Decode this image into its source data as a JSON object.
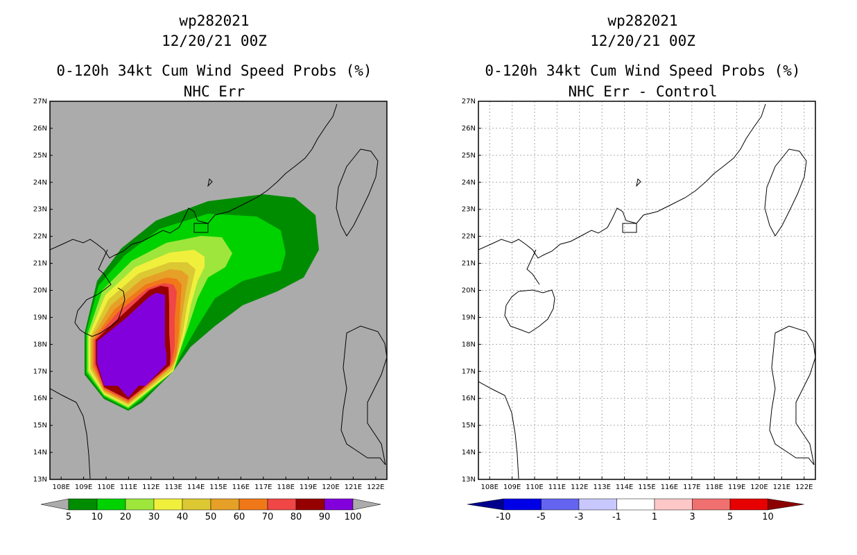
{
  "left_panel": {
    "title_storm": "wp282021",
    "title_time": "12/20/21 00Z",
    "title_product": "0-120h 34kt Cum Wind Speed Probs (%)",
    "title_model": "NHC Err",
    "lat_labels": [
      "27N",
      "26N",
      "25N",
      "24N",
      "23N",
      "22N",
      "21N",
      "20N",
      "19N",
      "18N",
      "17N",
      "16N",
      "15N",
      "14N",
      "13N"
    ],
    "lon_labels": [
      "108E",
      "109E",
      "110E",
      "111E",
      "112E",
      "113E",
      "114E",
      "115E",
      "116E",
      "117E",
      "118E",
      "119E",
      "120E",
      "121E",
      "122E"
    ],
    "colorbar": {
      "labels": [
        "5",
        "10",
        "20",
        "30",
        "40",
        "50",
        "60",
        "70",
        "80",
        "90",
        "100"
      ],
      "colors": [
        "#ababab",
        "#008c00",
        "#00d200",
        "#9ee63c",
        "#f0f03c",
        "#dcc832",
        "#e6a028",
        "#f07819",
        "#f04646",
        "#960000",
        "#8200dc",
        "#ababab"
      ]
    }
  },
  "right_panel": {
    "title_storm": "wp282021",
    "title_time": "12/20/21 00Z",
    "title_product": "0-120h 34kt Cum Wind Speed Probs (%)",
    "title_model": "NHC Err - Control",
    "lat_labels": [
      "27N",
      "26N",
      "25N",
      "24N",
      "23N",
      "22N",
      "21N",
      "20N",
      "19N",
      "18N",
      "17N",
      "16N",
      "15N",
      "14N",
      "13N"
    ],
    "lon_labels": [
      "108E",
      "109E",
      "110E",
      "111E",
      "112E",
      "113E",
      "114E",
      "115E",
      "116E",
      "117E",
      "118E",
      "119E",
      "120E",
      "121E",
      "122E"
    ],
    "colorbar": {
      "labels": [
        "-10",
        "-5",
        "-3",
        "-1",
        "1",
        "3",
        "5",
        "10"
      ],
      "colors": [
        "#00008c",
        "#0000e6",
        "#6464f0",
        "#c8c8ff",
        "#ffffff",
        "#ffc8c8",
        "#f07070",
        "#e60000",
        "#8c0000"
      ]
    }
  },
  "probability_contours": [
    {
      "level": 5,
      "color": "#008c00"
    },
    {
      "level": 10,
      "color": "#00d200"
    },
    {
      "level": 20,
      "color": "#9ee63c"
    },
    {
      "level": 30,
      "color": "#f0f03c"
    },
    {
      "level": 40,
      "color": "#dcc832"
    },
    {
      "level": 50,
      "color": "#e6a028"
    },
    {
      "level": 60,
      "color": "#f07819"
    },
    {
      "level": 70,
      "color": "#f04646"
    },
    {
      "level": 80,
      "color": "#960000"
    },
    {
      "level": 90,
      "color": "#8200dc"
    }
  ]
}
